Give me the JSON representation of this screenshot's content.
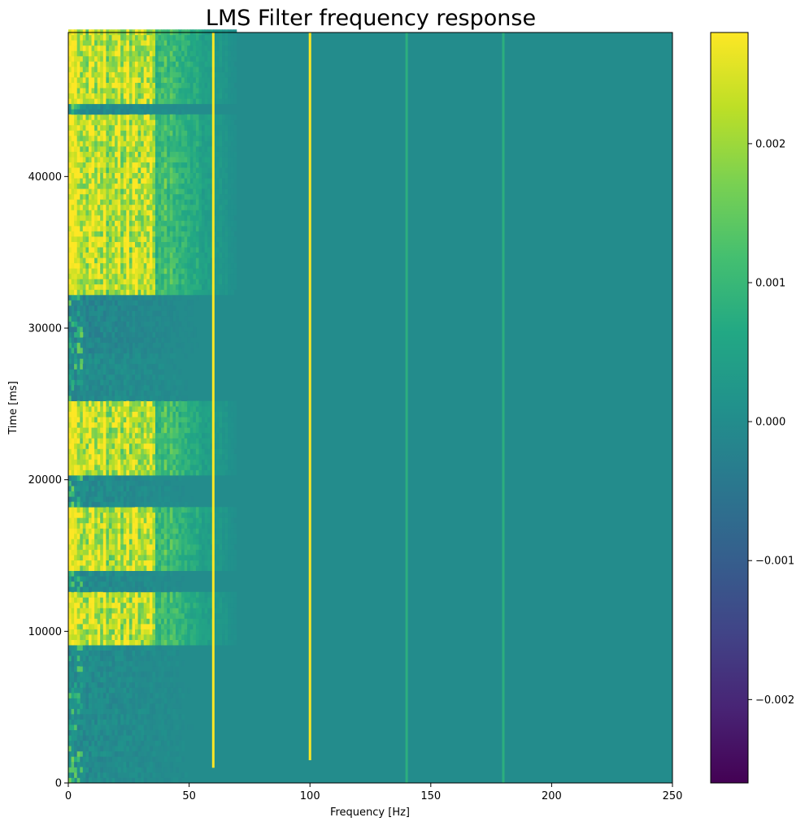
{
  "chart_data": {
    "type": "heatmap",
    "title": "LMS Filter frequency response",
    "xlabel": "Frequency [Hz]",
    "ylabel": "Time [ms]",
    "xlim": [
      0,
      250
    ],
    "ylim": [
      0,
      49500
    ],
    "x_ticks": [
      0,
      50,
      100,
      150,
      200,
      250
    ],
    "y_ticks": [
      0,
      10000,
      20000,
      30000,
      40000
    ],
    "colorbar": {
      "cmap": "viridis",
      "range": [
        -0.0026,
        0.0028
      ],
      "ticks": [
        -0.002,
        -0.001,
        0.0,
        0.001,
        0.002
      ],
      "tick_labels": [
        "−0.002",
        "−0.001",
        "0.000",
        "0.001",
        "0.002"
      ]
    },
    "grid": false,
    "features": {
      "background_value": 0.0,
      "low_freq_active_band_hz": [
        0,
        60
      ],
      "active_time_blocks_ms": [
        [
          9000,
          12500
        ],
        [
          14000,
          18000
        ],
        [
          20000,
          25000
        ],
        [
          32000,
          44000
        ],
        [
          44500,
          49500
        ]
      ],
      "vertical_lines": [
        {
          "freq": 60,
          "value": 0.0028,
          "from": 1000,
          "to": 49500
        },
        {
          "freq": 100,
          "value": 0.0028,
          "from": 1500,
          "to": 49500
        },
        {
          "freq": 140,
          "value": 0.0008,
          "from": 0,
          "to": 49500
        },
        {
          "freq": 180,
          "value": 0.0008,
          "from": 0,
          "to": 49500
        }
      ]
    }
  }
}
